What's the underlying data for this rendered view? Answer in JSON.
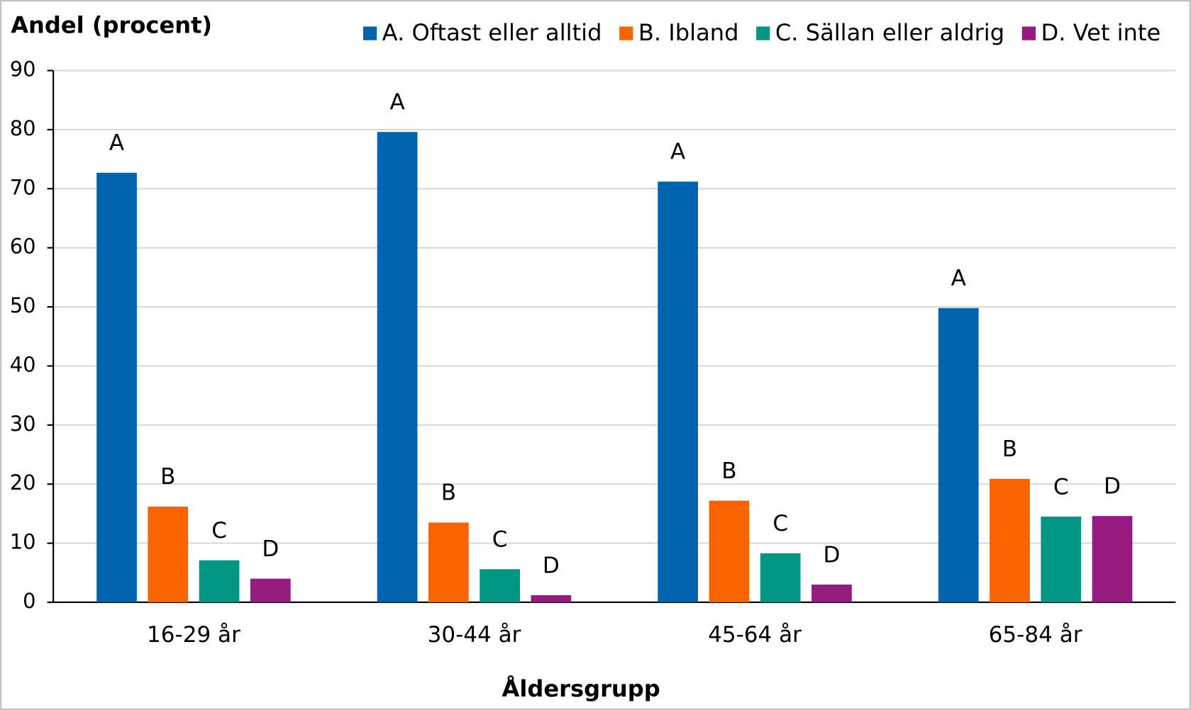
{
  "chart_data": {
    "type": "bar",
    "title": "Andel (procent)",
    "x_label": "Åldersgrupp",
    "categories": [
      "16-29 år",
      "30-44 år",
      "45-64 år",
      "65-84 år"
    ],
    "series": [
      {
        "name": "A. Oftast eller alltid",
        "label": "A",
        "color": "#0063ad",
        "values": [
          72.7,
          79.6,
          71.2,
          49.8
        ]
      },
      {
        "name": "B. Ibland",
        "label": "B",
        "color": "#fa6400",
        "values": [
          16.2,
          13.5,
          17.2,
          20.9
        ]
      },
      {
        "name": "C. Sällan eller aldrig",
        "label": "C",
        "color": "#009485",
        "values": [
          7.1,
          5.6,
          8.3,
          14.5
        ]
      },
      {
        "name": "D. Vet inte",
        "label": "D",
        "color": "#951b81",
        "values": [
          4.0,
          1.2,
          3.0,
          14.6
        ]
      }
    ],
    "ylim": [
      0,
      90
    ],
    "yticks": [
      0,
      10,
      20,
      30,
      40,
      50,
      60,
      70,
      80,
      90
    ],
    "grid": true
  }
}
